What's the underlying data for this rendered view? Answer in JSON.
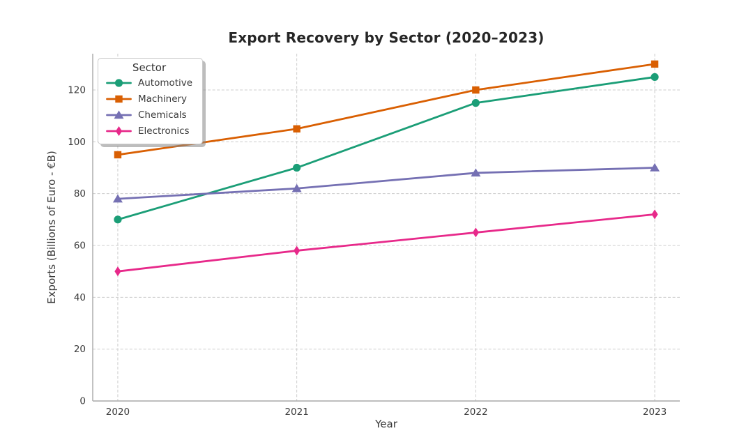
{
  "figure_title": "Export Recovery by Sector (2020–2023)",
  "colors": {
    "background": "#ffffff",
    "grid": "#cccccc",
    "spine": "#a9a9a9",
    "tick_text": "#3b3b3b",
    "title_text": "#262626"
  },
  "chart_data": {
    "type": "line",
    "title": "Export Recovery by Sector (2020–2023)",
    "xlabel": "Year",
    "ylabel": "Exports (Billions of Euro - €B)",
    "x": [
      2020,
      2021,
      2022,
      2023
    ],
    "x_tick_labels": [
      "2020",
      "2021",
      "2022",
      "2023"
    ],
    "y_ticks": [
      0,
      20,
      40,
      60,
      80,
      100,
      120
    ],
    "xlim": [
      2019.86,
      2023.14
    ],
    "ylim": [
      0,
      134
    ],
    "grid": true,
    "grid_style": "dashed",
    "legend_title": "Sector",
    "legend_position": "upper left",
    "series": [
      {
        "name": "Automotive",
        "color": "#1b9e77",
        "marker": "circle",
        "values": [
          70,
          90,
          115,
          125
        ]
      },
      {
        "name": "Machinery",
        "color": "#d95f02",
        "marker": "square",
        "values": [
          95,
          105,
          120,
          130
        ]
      },
      {
        "name": "Chemicals",
        "color": "#7570b3",
        "marker": "triangle",
        "values": [
          78,
          82,
          88,
          90
        ]
      },
      {
        "name": "Electronics",
        "color": "#e7298a",
        "marker": "diamond",
        "values": [
          50,
          58,
          65,
          72
        ]
      }
    ]
  }
}
